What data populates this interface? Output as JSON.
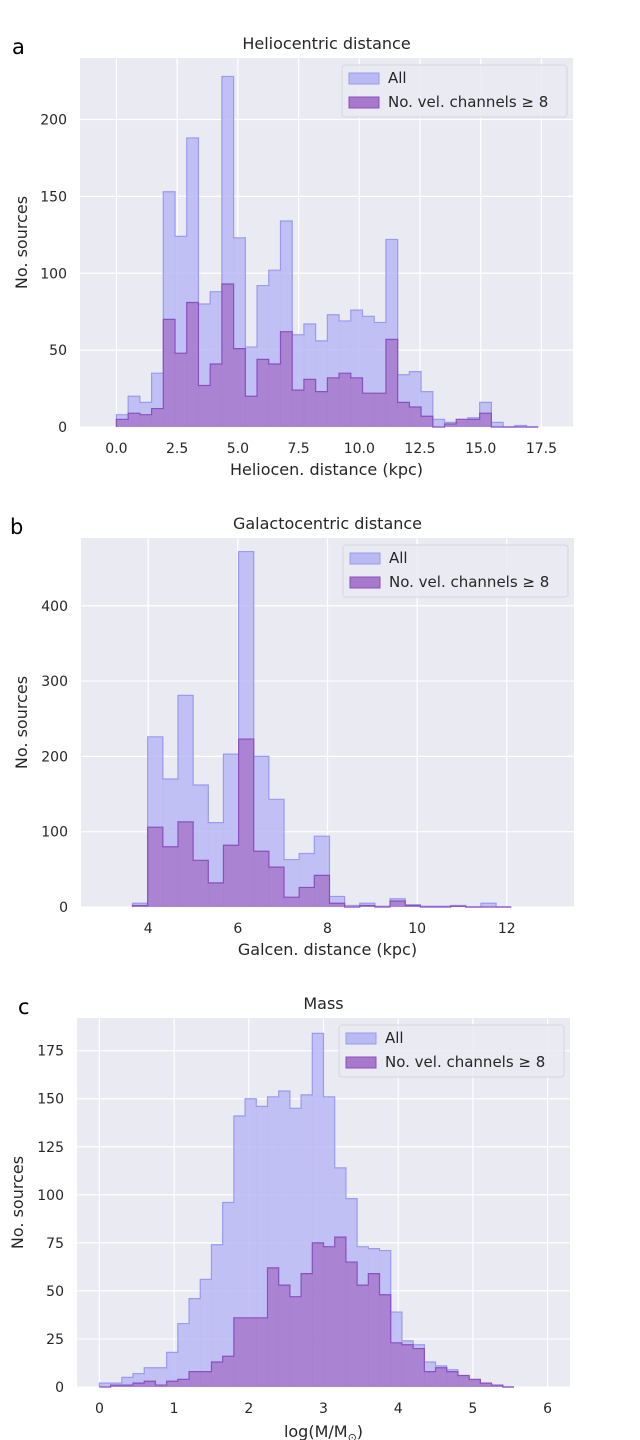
{
  "colors": {
    "axes_bg": "#EAEAF2",
    "grid": "#FFFFFF",
    "all_fill": "#B9B9F4",
    "all_edge": "#9A9AF0",
    "vel_fill": "#A778CC",
    "vel_edge": "#8A4FC0"
  },
  "chart_data": [
    {
      "type": "histogram",
      "panel_letter": "a",
      "title": "Heliocentric distance",
      "xlabel": "Heliocen. distance (kpc)",
      "ylabel": "No. sources",
      "xlim": [
        -1.5,
        18.8
      ],
      "ylim": [
        0,
        240
      ],
      "xticks": [
        0,
        2.5,
        5,
        7.5,
        10,
        12.5,
        15,
        17.5
      ],
      "xtick_labels": [
        "0.0",
        "2.5",
        "5.0",
        "7.5",
        "10.0",
        "12.5",
        "15.0",
        "17.5"
      ],
      "yticks": [
        0,
        50,
        100,
        150,
        200
      ],
      "ytick_labels": [
        "0",
        "50",
        "100",
        "150",
        "200"
      ],
      "bin_start": 0,
      "bin_width": 0.4825,
      "legend": {
        "position": "top-right",
        "entries": [
          "All",
          "No. vel. channels ≥ 8"
        ]
      },
      "series": [
        {
          "name": "All",
          "values": [
            8,
            20,
            16,
            35,
            153,
            124,
            188,
            80,
            88,
            228,
            123,
            52,
            92,
            102,
            134,
            60,
            67,
            56,
            73,
            69,
            76,
            72,
            68,
            122,
            34,
            36,
            23,
            5,
            3,
            3,
            6,
            16,
            3,
            0,
            1,
            0
          ]
        },
        {
          "name": "No. vel. channels ≥ 8",
          "values": [
            5,
            9,
            8,
            12,
            70,
            48,
            81,
            27,
            41,
            93,
            51,
            20,
            44,
            41,
            62,
            24,
            31,
            23,
            32,
            35,
            32,
            22,
            22,
            57,
            16,
            13,
            7,
            0,
            2,
            5,
            5,
            9,
            0,
            0,
            0,
            0
          ]
        }
      ]
    },
    {
      "type": "histogram",
      "panel_letter": "b",
      "title": "Galactocentric distance",
      "xlabel": "Galcen. distance (kpc)",
      "ylabel": "No. sources",
      "xlim": [
        2.5,
        13.5
      ],
      "ylim": [
        0,
        490
      ],
      "xticks": [
        4,
        6,
        8,
        10,
        12
      ],
      "xtick_labels": [
        "4",
        "6",
        "8",
        "10",
        "12"
      ],
      "yticks": [
        0,
        100,
        200,
        300,
        400
      ],
      "ytick_labels": [
        "0",
        "100",
        "200",
        "300",
        "400"
      ],
      "bin_start": 3.65,
      "bin_width": 0.338,
      "legend": {
        "position": "top-right",
        "entries": [
          "All",
          "No. vel. channels ≥ 8"
        ]
      },
      "series": [
        {
          "name": "All",
          "values": [
            5,
            226,
            170,
            281,
            162,
            112,
            203,
            472,
            200,
            143,
            63,
            71,
            94,
            14,
            2,
            5,
            1,
            11,
            3,
            1,
            1,
            2,
            0,
            5,
            0
          ]
        },
        {
          "name": "No. vel. channels ≥ 8",
          "values": [
            2,
            106,
            80,
            113,
            62,
            32,
            82,
            223,
            74,
            53,
            13,
            26,
            42,
            5,
            0,
            2,
            0,
            8,
            2,
            0,
            0,
            1,
            0,
            0,
            0
          ]
        }
      ]
    },
    {
      "type": "histogram",
      "panel_letter": "c",
      "title": "Mass",
      "xlabel": "log(M/M",
      "xlabel_sub": "⊙",
      "xlabel_end": ")",
      "ylabel": "No. sources",
      "xlim": [
        -0.3,
        6.3
      ],
      "ylim": [
        0,
        192
      ],
      "xticks": [
        0,
        1,
        2,
        3,
        4,
        5,
        6
      ],
      "xtick_labels": [
        "0",
        "1",
        "2",
        "3",
        "4",
        "5",
        "6"
      ],
      "yticks": [
        0,
        25,
        50,
        75,
        100,
        125,
        150,
        175
      ],
      "ytick_labels": [
        "0",
        "25",
        "50",
        "75",
        "100",
        "125",
        "150",
        "175"
      ],
      "bin_start": 0.0,
      "bin_width": 0.15,
      "legend": {
        "position": "top-right",
        "entries": [
          "All",
          "No. vel. channels ≥ 8"
        ]
      },
      "series": [
        {
          "name": "All",
          "values": [
            2,
            2,
            5,
            7,
            10,
            10,
            18,
            33,
            46,
            56,
            74,
            96,
            141,
            150,
            146,
            151,
            154,
            145,
            152,
            184,
            151,
            114,
            98,
            73,
            72,
            71,
            39,
            24,
            22,
            13,
            11,
            9,
            5,
            3,
            1,
            1,
            0
          ]
        },
        {
          "name": "No. vel. channels ≥ 8",
          "values": [
            0,
            1,
            1,
            2,
            3,
            1,
            3,
            4,
            8,
            8,
            13,
            16,
            36,
            36,
            36,
            62,
            53,
            47,
            59,
            75,
            73,
            78,
            65,
            53,
            59,
            48,
            23,
            22,
            20,
            8,
            10,
            8,
            6,
            4,
            2,
            1,
            0
          ]
        }
      ]
    }
  ]
}
